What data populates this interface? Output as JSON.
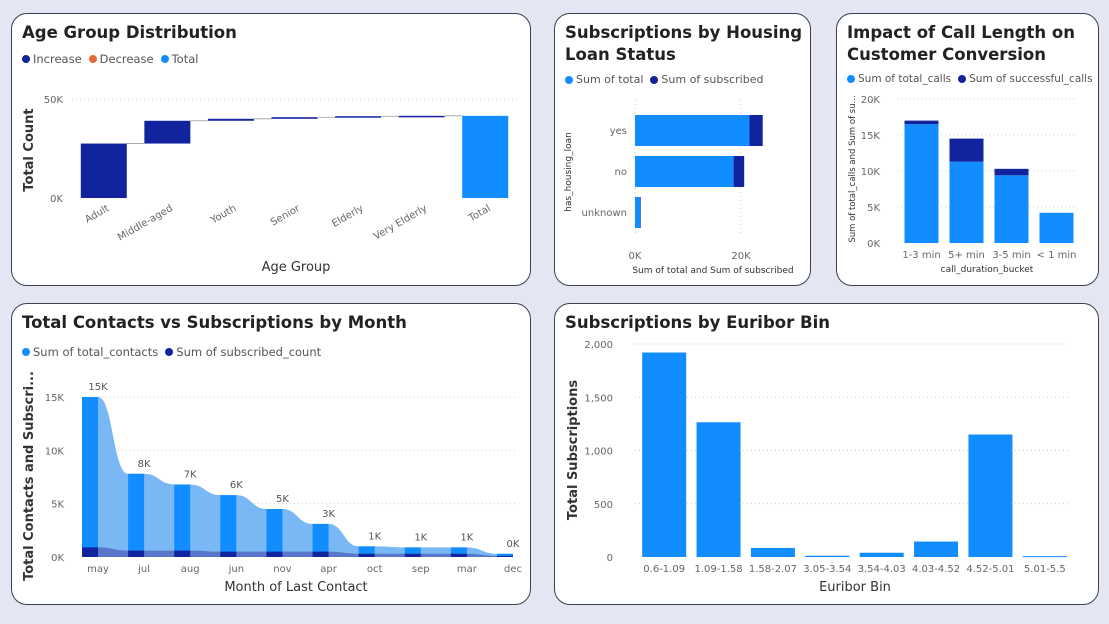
{
  "colors": {
    "light": "#118dff",
    "dark": "#12239e",
    "orange": "#e66c37",
    "area_light": "#7ab8f5"
  },
  "charts": {
    "age": {
      "title": "Age Group Distribution",
      "legend": [
        "Increase",
        "Decrease",
        "Total"
      ],
      "chart_data": {
        "type": "bar",
        "subtype": "waterfall",
        "categories": [
          "Adult",
          "Middle-aged",
          "Youth",
          "Senior",
          "Elderly",
          "Very Elderly",
          "Total"
        ],
        "values": [
          27500,
          11500,
          1000,
          800,
          500,
          200,
          41500
        ],
        "ylabel": "Total Count",
        "xlabel": "Age Group",
        "yticks": [
          "0K",
          "50K"
        ],
        "ylim": [
          0,
          50000
        ]
      }
    },
    "housing": {
      "title": "Subscriptions by Housing Loan Status",
      "legend": [
        "Sum of total",
        "Sum of subscribed"
      ],
      "chart_data": {
        "type": "bar",
        "orientation": "horizontal",
        "categories": [
          "yes",
          "no",
          "unknown"
        ],
        "series": [
          {
            "name": "Sum of total",
            "values": [
              21600,
              18600,
              1000
            ]
          },
          {
            "name": "Sum of subscribed",
            "values": [
              2500,
              2000,
              100
            ]
          }
        ],
        "ylabel": "has_housing_loan",
        "xlabel": "Sum of total and Sum of subscribed",
        "xticks": [
          "0K",
          "20K"
        ],
        "xlim": [
          0,
          24000
        ]
      }
    },
    "calls": {
      "title": "Impact of Call Length on Customer Conversion",
      "legend": [
        "Sum of total_calls",
        "Sum of successful_calls"
      ],
      "chart_data": {
        "type": "bar",
        "stacked": true,
        "categories": [
          "1-3 min",
          "5+ min",
          "3-5 min",
          "< 1 min"
        ],
        "series": [
          {
            "name": "Sum of total_calls",
            "values": [
              16500,
              11300,
              9400,
              4200
            ]
          },
          {
            "name": "Sum of successful_calls",
            "values": [
              500,
              3200,
              900,
              0
            ]
          }
        ],
        "ylabel": "Sum of total_calls and Sum of su...",
        "xlabel": "call_duration_bucket",
        "yticks": [
          "0K",
          "5K",
          "10K",
          "15K",
          "20K"
        ],
        "ylim": [
          0,
          20000
        ]
      }
    },
    "month": {
      "title": "Total Contacts vs Subscriptions by Month",
      "legend": [
        "Sum of total_contacts",
        "Sum of subscribed_count"
      ],
      "chart_data": {
        "type": "area",
        "categories": [
          "may",
          "jul",
          "aug",
          "jun",
          "nov",
          "apr",
          "oct",
          "sep",
          "mar",
          "dec"
        ],
        "series": [
          {
            "name": "Sum of total_contacts",
            "values": [
              15000,
              7800,
              6800,
              5800,
              4500,
              3100,
              1000,
              900,
              900,
              300
            ]
          },
          {
            "name": "Sum of subscribed_count",
            "values": [
              900,
              600,
              600,
              500,
              500,
              500,
              300,
              300,
              300,
              100
            ]
          }
        ],
        "data_labels": [
          "15K",
          "8K",
          "7K",
          "6K",
          "5K",
          "3K",
          "1K",
          "1K",
          "1K",
          "0K"
        ],
        "ylabel": "Total Contacts and Subscri...",
        "xlabel": "Month of Last Contact",
        "yticks": [
          "0K",
          "5K",
          "10K",
          "15K"
        ],
        "ylim": [
          0,
          15000
        ]
      }
    },
    "euribor": {
      "title": "Subscriptions by Euribor Bin",
      "chart_data": {
        "type": "bar",
        "categories": [
          "0.6-1.09",
          "1.09-1.58",
          "1.58-2.07",
          "3.05-3.54",
          "3.54-4.03",
          "4.03-4.52",
          "4.52-5.01",
          "5.01-5.5"
        ],
        "values": [
          1920,
          1265,
          85,
          12,
          40,
          145,
          1150,
          8
        ],
        "ylabel": "Total Subscriptions",
        "xlabel": "Euribor Bin",
        "yticks": [
          "0",
          "500",
          "1,000",
          "1,500",
          "2,000"
        ],
        "ylim": [
          0,
          2000
        ]
      }
    }
  }
}
